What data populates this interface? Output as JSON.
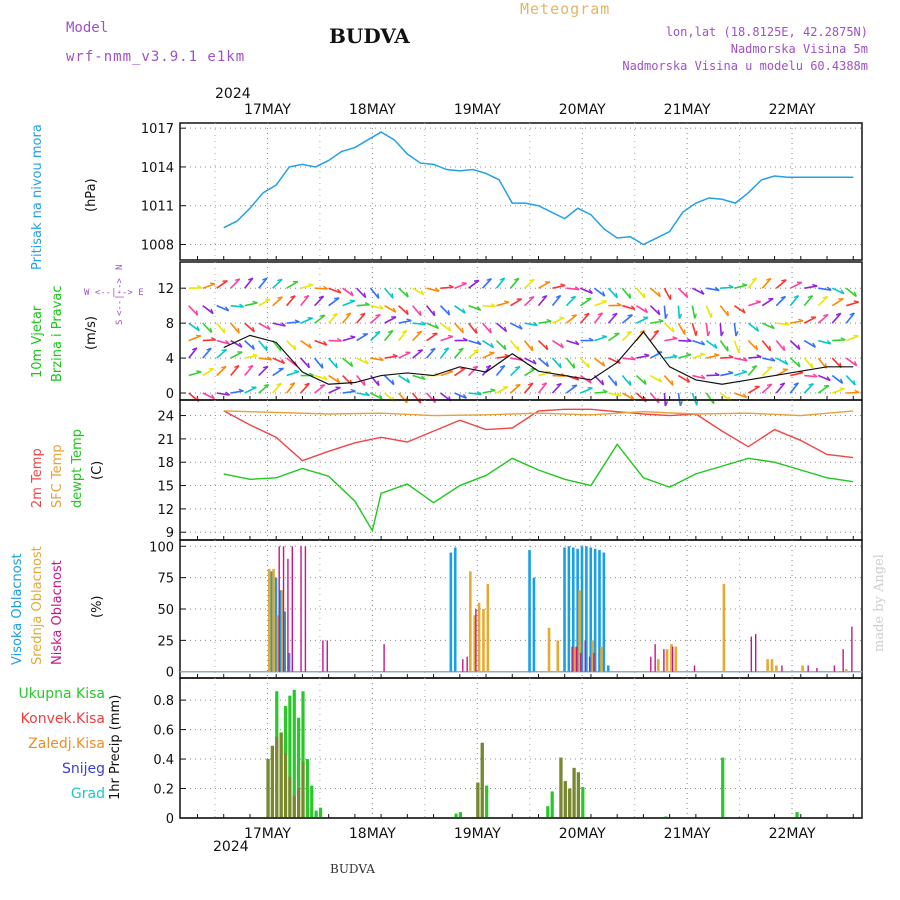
{
  "header": {
    "model_label": "Model",
    "model_name": "wrf-nmm_v3.9.1 e1km",
    "station": "BUDVA",
    "product": "Meteogram",
    "lonlat": "lon,lat (18.8125E, 42.2875N)",
    "elevation": "Nadmorska Visina 5m",
    "model_elevation": "Nadmorska Visina u modelu 60.4388m",
    "bottom_station": "BUDVA",
    "credit": "made by Angel",
    "year_top": "2024",
    "year_bottom": "2024"
  },
  "colors": {
    "pressure": "#22a0e8",
    "wind_label": "#14c814",
    "t2m": "#f04646",
    "tsfc": "#e6a03c",
    "dewpt": "#1ec81e",
    "cloud_high": "#18a0e6",
    "cloud_mid": "#e6aa32",
    "cloud_low": "#c8148c",
    "rain_total": "#28c828",
    "rain_conv": "#f03c3c",
    "freezing": "#f08c28",
    "snow": "#3c3cdc",
    "hail": "#1ec8c8",
    "model_text": "#a050c8",
    "product_text": "#e6b464"
  },
  "chart_data": [
    {
      "type": "line",
      "title": "",
      "ylabel_name": "Pritisak na nivou mora",
      "ylabel_unit": "(hPa)",
      "x_ticks": [
        "17MAY",
        "18MAY",
        "19MAY",
        "20MAY",
        "21MAY",
        "22MAY"
      ],
      "ylim": [
        1006.8,
        1017.4
      ],
      "y_ticks": [
        "1008",
        "1011",
        "1014",
        "1017"
      ],
      "grid": true,
      "series": [
        {
          "name": "",
          "x": [
            0,
            3,
            6,
            9,
            12,
            15,
            18,
            21,
            24,
            27,
            30,
            33,
            36,
            39,
            42,
            45,
            48,
            51,
            54,
            57,
            60,
            63,
            66,
            69,
            72,
            75,
            78,
            81,
            84,
            87,
            90,
            93,
            96,
            99,
            102,
            105,
            108,
            111,
            114,
            117,
            120,
            123,
            126,
            129,
            132,
            135,
            138,
            141,
            144
          ],
          "values": [
            1009.3,
            1009.8,
            1010.8,
            1012.0,
            1012.6,
            1014.0,
            1014.2,
            1014.0,
            1014.5,
            1015.2,
            1015.5,
            1016.1,
            1016.7,
            1016.1,
            1015.0,
            1014.3,
            1014.2,
            1013.8,
            1013.7,
            1013.8,
            1013.5,
            1013.0,
            1011.2,
            1011.2,
            1011.0,
            1010.5,
            1010.0,
            1010.8,
            1010.3,
            1009.2,
            1008.5,
            1008.6,
            1008.0,
            1008.5,
            1009.0,
            1010.5,
            1011.2,
            1011.6,
            1011.5,
            1011.2,
            1012.0,
            1013.0,
            1013.3,
            1013.2,
            1013.2,
            1013.2,
            1013.2,
            1013.2,
            1013.2
          ]
        }
      ]
    },
    {
      "type": "line",
      "title": "",
      "ylabel_name": "10m Vjetar",
      "ylabel_name2": "Brzina i Pravac",
      "ylabel_unit": "(m/s)",
      "direction_key": [
        "W",
        "<--|-->",
        "E"
      ],
      "direction_key2": [
        "S",
        "N"
      ],
      "ylim": [
        -0.8,
        15
      ],
      "y_ticks": [
        "0",
        "4",
        "8",
        "12"
      ],
      "grid": true,
      "series": [
        {
          "name": "",
          "x": [
            0,
            6,
            12,
            18,
            24,
            30,
            36,
            42,
            48,
            54,
            60,
            66,
            72,
            78,
            84,
            90,
            96,
            102,
            108,
            114,
            120,
            126,
            132,
            138,
            144
          ],
          "values": [
            5.2,
            6.6,
            5.8,
            2.4,
            1.0,
            1.2,
            2.0,
            2.3,
            2.0,
            3.0,
            2.4,
            4.5,
            2.5,
            2.0,
            1.5,
            3.5,
            7.0,
            3.0,
            1.5,
            1.0,
            1.5,
            2.0,
            2.5,
            3.0,
            3.0
          ]
        }
      ]
    },
    {
      "type": "line",
      "title": "",
      "ylabel_name": "2m Temp",
      "ylabel_name2": "SFC Temp",
      "ylabel_name3": "dewpt Temp",
      "ylabel_unit": "(C)",
      "ylim": [
        8,
        26
      ],
      "y_ticks": [
        "9",
        "12",
        "15",
        "18",
        "21",
        "24"
      ],
      "grid": true,
      "series": [
        {
          "name": "2m Temp",
          "x": [
            0,
            6,
            12,
            18,
            24,
            30,
            36,
            42,
            48,
            54,
            60,
            66,
            72,
            78,
            84,
            90,
            96,
            102,
            108,
            114,
            120,
            126,
            132,
            138,
            144
          ],
          "values": [
            24.6,
            22.8,
            21.2,
            18.2,
            19.4,
            20.5,
            21.2,
            20.6,
            22.0,
            23.4,
            22.2,
            22.4,
            24.6,
            24.8,
            24.8,
            24.5,
            24.2,
            24.0,
            24.2,
            22.0,
            20.0,
            22.2,
            20.8,
            19.0,
            18.6
          ]
        },
        {
          "name": "SFC Temp",
          "x": [
            0,
            12,
            24,
            36,
            48,
            60,
            72,
            84,
            96,
            108,
            120,
            132,
            144
          ],
          "values": [
            24.6,
            24.4,
            24.2,
            24.3,
            24.0,
            24.1,
            24.3,
            24.1,
            24.5,
            24.2,
            24.3,
            24.0,
            24.6
          ]
        },
        {
          "name": "dewpt Temp",
          "x": [
            0,
            6,
            12,
            18,
            24,
            30,
            34,
            36,
            42,
            48,
            54,
            60,
            66,
            72,
            78,
            84,
            90,
            96,
            102,
            108,
            114,
            120,
            126,
            132,
            138,
            144
          ],
          "values": [
            16.5,
            15.8,
            16.0,
            17.2,
            16.2,
            13.0,
            9.2,
            14.0,
            15.2,
            12.8,
            15.0,
            16.3,
            18.5,
            17.0,
            15.8,
            15.0,
            20.3,
            16.0,
            14.8,
            16.5,
            17.5,
            18.5,
            18.0,
            17.0,
            16.0,
            15.5
          ]
        }
      ]
    },
    {
      "type": "bar",
      "title": "",
      "ylabel_name": "Visoka Oblacnost",
      "ylabel_name2": "Srednja Oblacnost",
      "ylabel_name3": "Niska Oblacnost",
      "ylabel_unit": "(%)",
      "ylim": [
        -5,
        105
      ],
      "y_ticks": [
        "0",
        "25",
        "50",
        "75",
        "100"
      ],
      "grid": true,
      "series": [
        {
          "name": "Visoka Oblacnost",
          "x": [
            11,
            12,
            13,
            14,
            15,
            52,
            53,
            70,
            71,
            78,
            79,
            80,
            81,
            82,
            83,
            84,
            85,
            86,
            87,
            88
          ],
          "values": [
            80,
            75,
            65,
            48,
            15,
            95,
            99,
            97,
            75,
            99,
            100,
            99,
            98,
            100,
            100,
            99,
            98,
            97,
            95,
            5
          ]
        },
        {
          "name": "Srednja Oblacnost",
          "x": [
            10,
            11,
            12,
            13,
            56,
            57,
            58,
            59,
            60,
            74,
            76,
            80,
            81,
            84,
            86,
            99,
            101,
            102,
            103,
            114,
            124,
            125,
            126,
            132,
            142
          ],
          "values": [
            82,
            82,
            45,
            65,
            80,
            45,
            55,
            50,
            70,
            35,
            25,
            20,
            65,
            25,
            20,
            10,
            18,
            22,
            20,
            70,
            10,
            10,
            5,
            5,
            2
          ]
        },
        {
          "name": "Niska Oblacnost",
          "x": [
            12,
            13,
            14,
            15,
            17,
            18,
            22,
            23,
            36,
            54,
            55,
            57,
            79,
            80,
            81,
            82,
            83,
            84,
            97,
            98,
            100,
            102,
            107,
            120,
            121,
            127,
            133,
            135,
            139,
            141,
            143
          ],
          "values": [
            100,
            100,
            90,
            100,
            100,
            100,
            25,
            25,
            22,
            10,
            12,
            50,
            20,
            20,
            15,
            25,
            12,
            15,
            12,
            22,
            18,
            20,
            5,
            28,
            30,
            5,
            5,
            3,
            5,
            18,
            36
          ]
        }
      ]
    },
    {
      "type": "bar",
      "title": "",
      "ylabel_name": "1hr Precip",
      "ylabel_unit": "(mm)",
      "legend": [
        "Ukupna Kisa",
        "Konvek.Kisa",
        "Zaledj.Kisa",
        "Snijeg",
        "Grad"
      ],
      "x_ticks": [
        "17MAY",
        "18MAY",
        "19MAY",
        "20MAY",
        "21MAY",
        "22MAY"
      ],
      "ylim": [
        0,
        0.95
      ],
      "y_ticks": [
        "0",
        "0.2",
        "0.4",
        "0.6",
        "0.8"
      ],
      "grid": true,
      "series": [
        {
          "name": "Ukupna Kisa",
          "x": [
            10,
            11,
            12,
            13,
            14,
            15,
            16,
            17,
            18,
            19,
            20,
            21,
            22,
            53,
            54,
            58,
            59,
            60,
            74,
            75,
            77,
            78,
            79,
            80,
            81,
            82,
            101,
            101,
            114,
            131
          ],
          "values": [
            0.4,
            0.49,
            0.86,
            0.58,
            0.76,
            0.83,
            0.87,
            0.68,
            0.86,
            0.4,
            0.22,
            0.05,
            0.07,
            0.03,
            0.04,
            0.24,
            0.51,
            0.22,
            0.08,
            0.18,
            0.41,
            0.25,
            0.2,
            0.34,
            0.31,
            0.21,
            0.01,
            0.01,
            0.41,
            0.04
          ]
        },
        {
          "name": "Konvek.Kisa",
          "x": [
            10,
            11,
            12,
            13,
            14,
            15,
            16,
            17,
            18,
            58,
            59,
            77,
            78,
            79,
            80,
            81
          ],
          "values": [
            0.4,
            0.49,
            0.55,
            0.58,
            0.44,
            0.28,
            0.15,
            0.2,
            0.38,
            0.24,
            0.51,
            0.41,
            0.25,
            0.2,
            0.34,
            0.31
          ]
        }
      ]
    }
  ]
}
